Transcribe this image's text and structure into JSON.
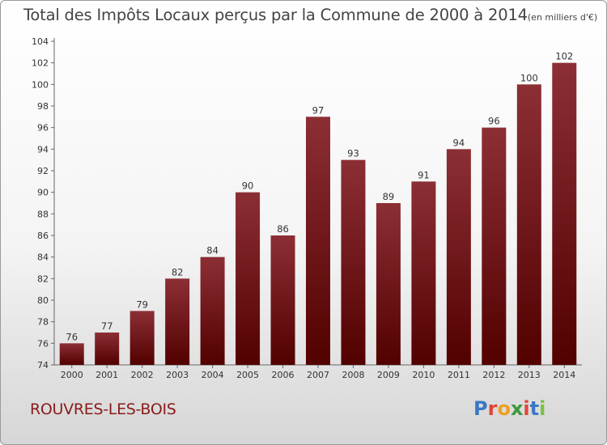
{
  "chart_data": {
    "type": "bar",
    "title": "Total des Impôts Locaux perçus par la Commune de 2000 à 2014",
    "subtitle": "(en milliers d'€)",
    "categories": [
      "2000",
      "2001",
      "2002",
      "2003",
      "2004",
      "2005",
      "2006",
      "2007",
      "2008",
      "2009",
      "2010",
      "2011",
      "2012",
      "2013",
      "2014"
    ],
    "values": [
      76,
      77,
      79,
      82,
      84,
      90,
      86,
      97,
      93,
      89,
      91,
      94,
      96,
      100,
      102
    ],
    "ylim": [
      74,
      104
    ],
    "yticks": [
      74,
      76,
      78,
      80,
      82,
      84,
      86,
      88,
      90,
      92,
      94,
      96,
      98,
      100,
      102,
      104
    ],
    "grid": false,
    "bar_color_top": "#8c2f35",
    "bar_color_bottom": "#520000"
  },
  "footer": {
    "commune": "ROUVRES-LES-BOIS"
  },
  "logo": {
    "letters": [
      "P",
      "r",
      "o",
      "x",
      "i",
      "t",
      "i"
    ],
    "colors": [
      "#3a78c4",
      "#e0453a",
      "#f0a020",
      "#3a9a3a",
      "#e0453a",
      "#3a78c4",
      "#7ac142"
    ]
  }
}
